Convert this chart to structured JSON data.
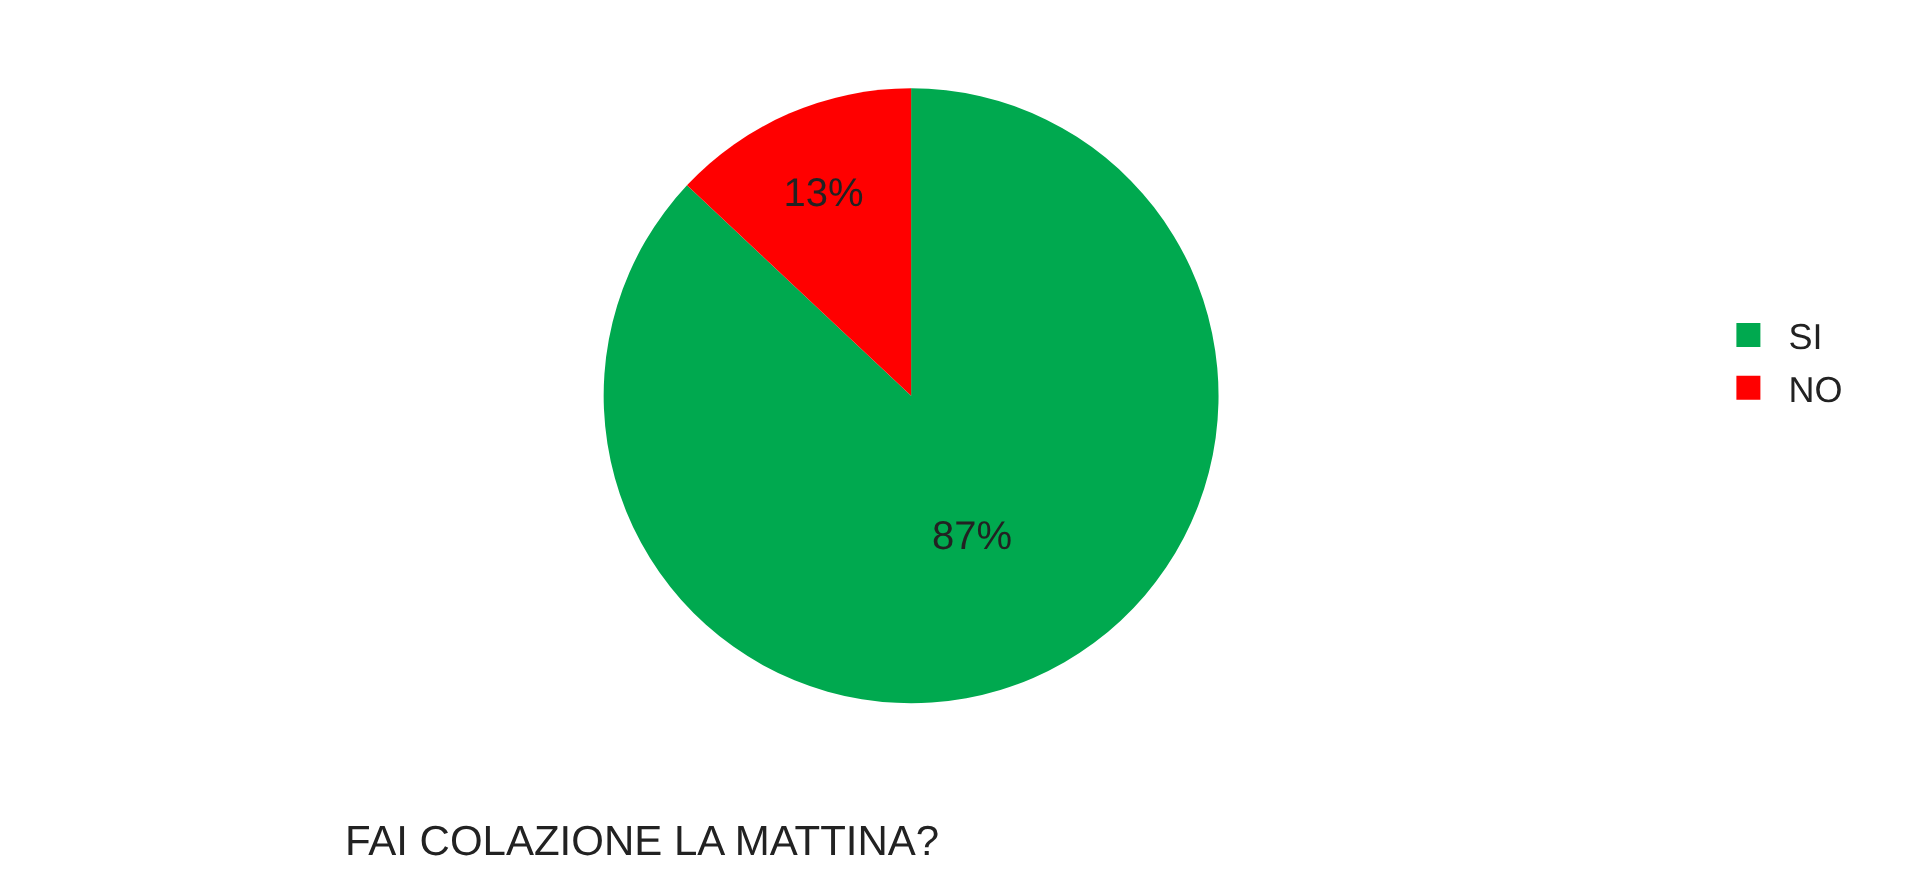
{
  "chart_data": {
    "type": "pie",
    "title": "FAI COLAZIONE LA MATTINA?",
    "categories": [
      "SI",
      "NO"
    ],
    "values": [
      87,
      13
    ],
    "value_labels": [
      "87%",
      "13%"
    ],
    "colors": [
      "#00a94f",
      "#ff0000"
    ],
    "legend": "right"
  }
}
